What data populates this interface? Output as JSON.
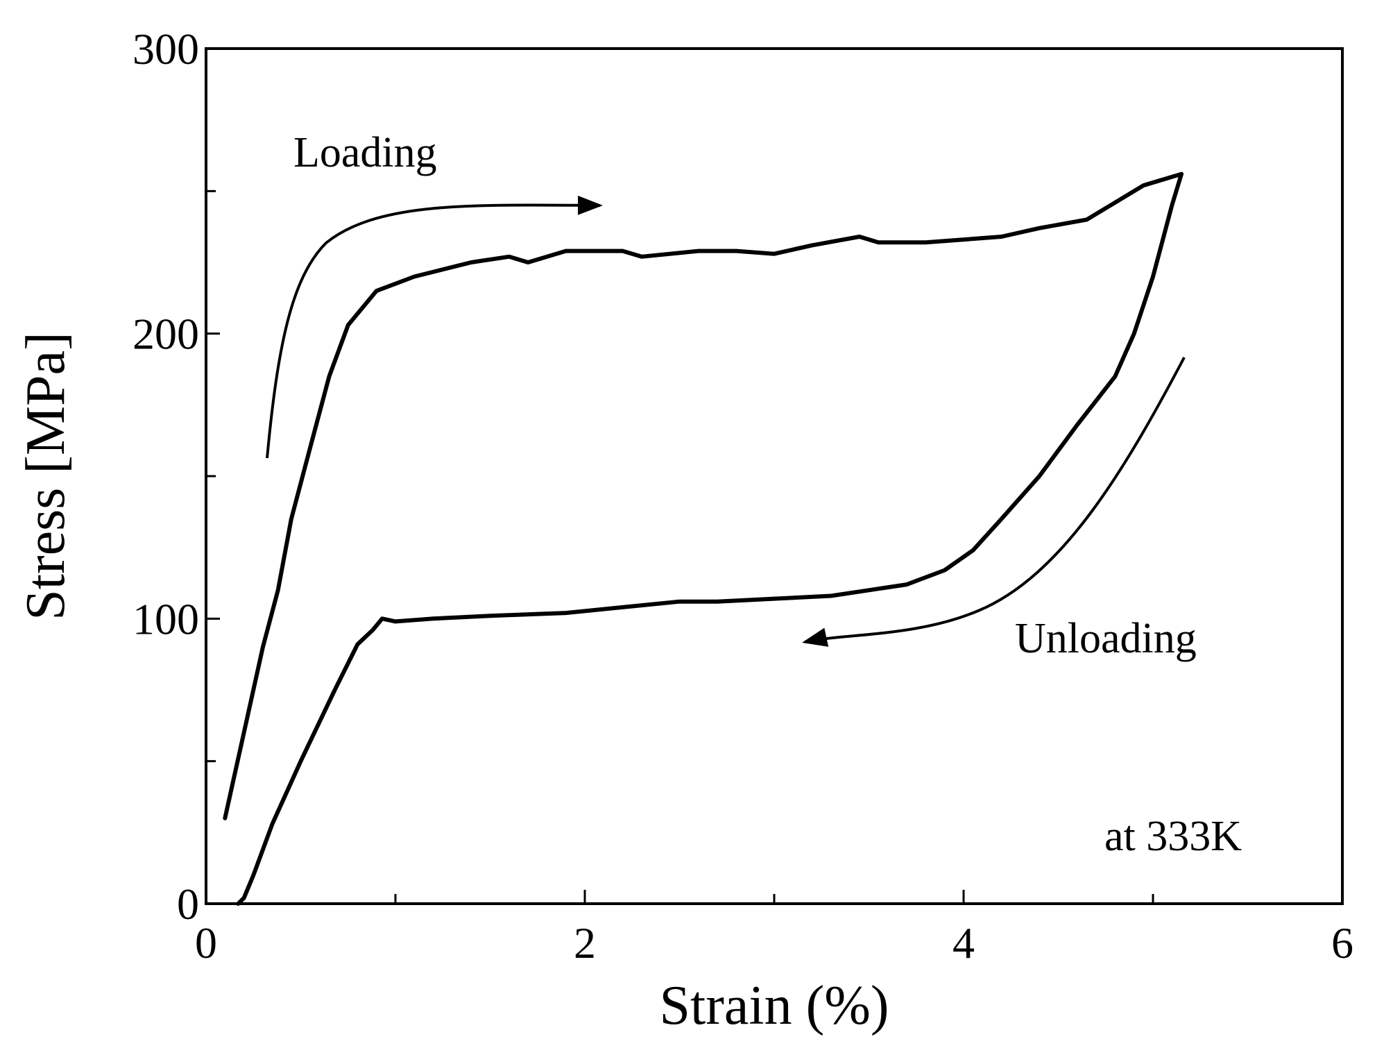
{
  "chart_data": {
    "type": "line",
    "xlabel": "Strain (%)",
    "ylabel": "Stress [MPa]",
    "xlim": [
      0,
      6
    ],
    "ylim": [
      0,
      300
    ],
    "x_ticks": [
      0,
      2,
      4,
      6
    ],
    "x_minor_ticks": [
      1,
      3,
      5
    ],
    "y_ticks": [
      0,
      100,
      200,
      300
    ],
    "y_minor_ticks": [
      50,
      150,
      250
    ],
    "grid": false,
    "annotations": {
      "loading": "Loading",
      "unloading": "Unloading",
      "temperature": "at 333K"
    },
    "series": [
      {
        "points": [
          [
            0.1,
            30
          ],
          [
            0.2,
            60
          ],
          [
            0.3,
            90
          ],
          [
            0.38,
            110
          ],
          [
            0.45,
            135
          ],
          [
            0.55,
            160
          ],
          [
            0.65,
            185
          ],
          [
            0.75,
            203
          ],
          [
            0.9,
            215
          ],
          [
            1.1,
            220
          ],
          [
            1.4,
            225
          ],
          [
            1.6,
            227
          ],
          [
            1.7,
            225
          ],
          [
            1.9,
            229
          ],
          [
            2.0,
            229
          ],
          [
            2.2,
            229
          ],
          [
            2.3,
            227
          ],
          [
            2.6,
            229
          ],
          [
            2.8,
            229
          ],
          [
            3.0,
            228
          ],
          [
            3.2,
            231
          ],
          [
            3.45,
            234
          ],
          [
            3.55,
            232
          ],
          [
            3.8,
            232
          ],
          [
            4.2,
            234
          ],
          [
            4.4,
            237
          ],
          [
            4.65,
            240
          ],
          [
            4.8,
            246
          ],
          [
            4.95,
            252
          ],
          [
            5.15,
            256
          ]
        ]
      },
      {
        "points": [
          [
            5.15,
            256
          ],
          [
            5.1,
            245
          ],
          [
            5.0,
            220
          ],
          [
            4.9,
            200
          ],
          [
            4.8,
            185
          ],
          [
            4.6,
            168
          ],
          [
            4.4,
            150
          ],
          [
            4.2,
            135
          ],
          [
            4.05,
            124
          ],
          [
            3.9,
            117
          ],
          [
            3.7,
            112
          ],
          [
            3.5,
            110
          ],
          [
            3.3,
            108
          ],
          [
            3.0,
            107
          ],
          [
            2.7,
            106
          ],
          [
            2.5,
            106
          ],
          [
            2.2,
            104
          ],
          [
            1.9,
            102
          ],
          [
            1.5,
            101
          ],
          [
            1.2,
            100
          ],
          [
            1.0,
            99
          ],
          [
            0.93,
            100
          ],
          [
            0.88,
            96
          ],
          [
            0.8,
            91
          ],
          [
            0.68,
            75
          ],
          [
            0.5,
            50
          ],
          [
            0.35,
            28
          ],
          [
            0.25,
            10
          ],
          [
            0.2,
            2
          ],
          [
            0.17,
            0
          ]
        ]
      }
    ]
  }
}
